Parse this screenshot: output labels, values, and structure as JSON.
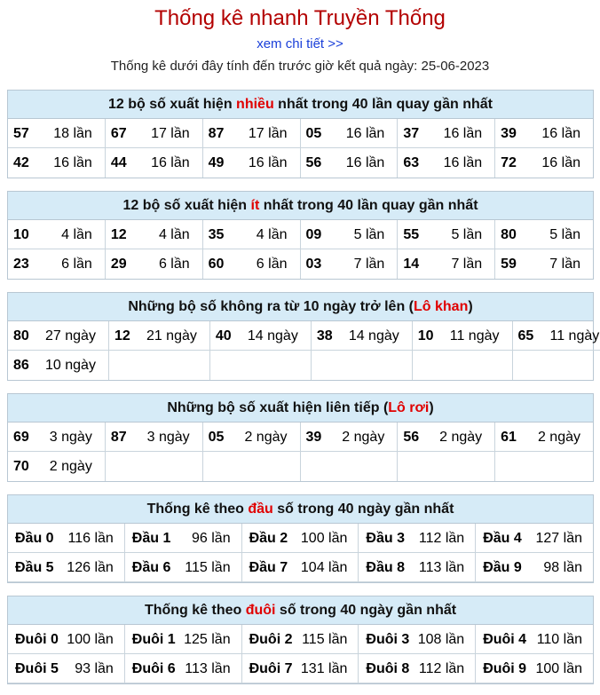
{
  "header": {
    "title": "Thống kê nhanh Truyền Thống",
    "see_more": "xem chi tiết >>",
    "date_line": "Thống kê dưới đây tính đến trước giờ kết quả ngày: 25-06-2023"
  },
  "sections": {
    "most": {
      "title_pre": "12 bộ số xuất hiện ",
      "title_hl": "nhiều",
      "title_post": " nhất trong 40 lần quay gần nhất",
      "items": [
        {
          "num": "57",
          "val": "18 lần"
        },
        {
          "num": "67",
          "val": "17 lần"
        },
        {
          "num": "87",
          "val": "17 lần"
        },
        {
          "num": "05",
          "val": "16 lần"
        },
        {
          "num": "37",
          "val": "16 lần"
        },
        {
          "num": "39",
          "val": "16 lần"
        },
        {
          "num": "42",
          "val": "16 lần"
        },
        {
          "num": "44",
          "val": "16 lần"
        },
        {
          "num": "49",
          "val": "16 lần"
        },
        {
          "num": "56",
          "val": "16 lần"
        },
        {
          "num": "63",
          "val": "16 lần"
        },
        {
          "num": "72",
          "val": "16 lần"
        }
      ]
    },
    "least": {
      "title_pre": "12 bộ số xuất hiện ",
      "title_hl": "ít",
      "title_post": " nhất trong 40 lần quay gần nhất",
      "items": [
        {
          "num": "10",
          "val": "4 lần"
        },
        {
          "num": "12",
          "val": "4 lần"
        },
        {
          "num": "35",
          "val": "4 lần"
        },
        {
          "num": "09",
          "val": "5 lần"
        },
        {
          "num": "55",
          "val": "5 lần"
        },
        {
          "num": "80",
          "val": "5 lần"
        },
        {
          "num": "23",
          "val": "6 lần"
        },
        {
          "num": "29",
          "val": "6 lần"
        },
        {
          "num": "60",
          "val": "6 lần"
        },
        {
          "num": "03",
          "val": "7 lần"
        },
        {
          "num": "14",
          "val": "7 lần"
        },
        {
          "num": "59",
          "val": "7 lần"
        }
      ]
    },
    "lo_khan": {
      "title_pre": "Những bộ số không ra từ 10 ngày trở lên (",
      "title_hl": "Lô khan",
      "title_post": ")",
      "items": [
        {
          "num": "80",
          "val": "27 ngày"
        },
        {
          "num": "12",
          "val": "21 ngày"
        },
        {
          "num": "40",
          "val": "14 ngày"
        },
        {
          "num": "38",
          "val": "14 ngày"
        },
        {
          "num": "10",
          "val": "11 ngày"
        },
        {
          "num": "65",
          "val": "11 ngày"
        },
        {
          "num": "86",
          "val": "10 ngày"
        }
      ]
    },
    "lo_roi": {
      "title_pre": "Những bộ số xuất hiện liên tiếp (",
      "title_hl": "Lô rơi",
      "title_post": ")",
      "items": [
        {
          "num": "69",
          "val": "3 ngày"
        },
        {
          "num": "87",
          "val": "3 ngày"
        },
        {
          "num": "05",
          "val": "2 ngày"
        },
        {
          "num": "39",
          "val": "2 ngày"
        },
        {
          "num": "56",
          "val": "2 ngày"
        },
        {
          "num": "61",
          "val": "2 ngày"
        },
        {
          "num": "70",
          "val": "2 ngày"
        }
      ]
    },
    "dau": {
      "title_pre": "Thống kê theo ",
      "title_hl": "đầu",
      "title_post": " số trong 40 ngày gần nhất",
      "items": [
        {
          "num": "Đầu 0",
          "val": "116 lần"
        },
        {
          "num": "Đầu 1",
          "val": "96 lần"
        },
        {
          "num": "Đầu 2",
          "val": "100 lần"
        },
        {
          "num": "Đầu 3",
          "val": "112 lần"
        },
        {
          "num": "Đầu 4",
          "val": "127 lần"
        },
        {
          "num": "Đầu 5",
          "val": "126 lần"
        },
        {
          "num": "Đầu 6",
          "val": "115 lần"
        },
        {
          "num": "Đầu 7",
          "val": "104 lần"
        },
        {
          "num": "Đầu 8",
          "val": "113 lần"
        },
        {
          "num": "Đầu 9",
          "val": "98 lần"
        }
      ]
    },
    "duoi": {
      "title_pre": "Thống kê theo ",
      "title_hl": "đuôi",
      "title_post": " số trong 40 ngày gần nhất",
      "items": [
        {
          "num": "Đuôi 0",
          "val": "100 lần"
        },
        {
          "num": "Đuôi 1",
          "val": "125 lần"
        },
        {
          "num": "Đuôi 2",
          "val": "115 lần"
        },
        {
          "num": "Đuôi 3",
          "val": "108 lần"
        },
        {
          "num": "Đuôi 4",
          "val": "110 lần"
        },
        {
          "num": "Đuôi 5",
          "val": "93 lần"
        },
        {
          "num": "Đuôi 6",
          "val": "113 lần"
        },
        {
          "num": "Đuôi 7",
          "val": "131 lần"
        },
        {
          "num": "Đuôi 8",
          "val": "112 lần"
        },
        {
          "num": "Đuôi 9",
          "val": "100 lần"
        }
      ]
    }
  },
  "colors": {
    "title": "#b30000",
    "link": "#1a3fd9",
    "highlight": "#e00000",
    "header_bg": "#d6ebf7"
  }
}
